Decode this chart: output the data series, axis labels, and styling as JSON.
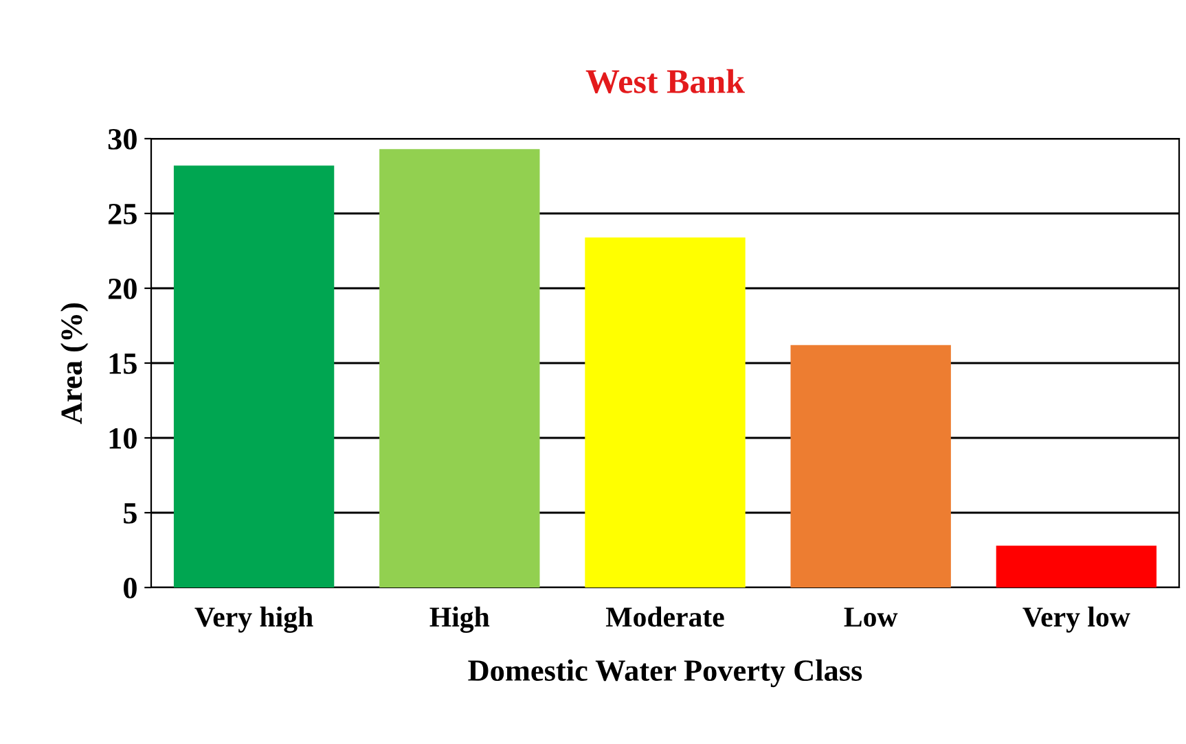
{
  "chart_data": {
    "type": "bar",
    "title": "West Bank",
    "xlabel": "Domestic Water Poverty Class",
    "ylabel": "Area (%)",
    "categories": [
      "Very high",
      "High",
      "Moderate",
      "Low",
      "Very low"
    ],
    "values": [
      28.2,
      29.3,
      23.4,
      16.2,
      2.8
    ],
    "colors": [
      "#00a651",
      "#92d050",
      "#ffff00",
      "#ed7d31",
      "#ff0000"
    ],
    "ylim": [
      0,
      30
    ],
    "yticks": [
      0,
      5,
      10,
      15,
      20,
      25,
      30
    ],
    "grid": "y"
  }
}
